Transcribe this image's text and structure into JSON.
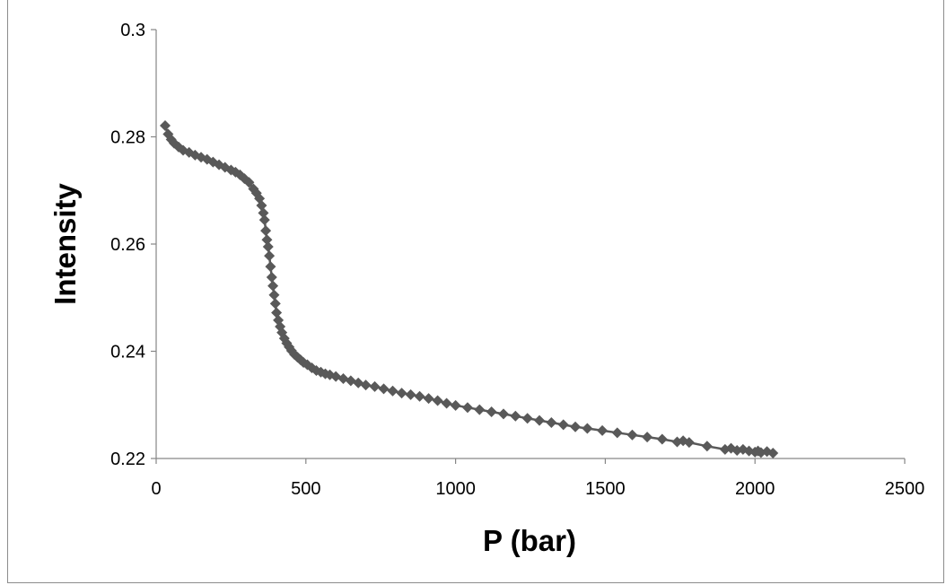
{
  "chart_data": {
    "type": "scatter",
    "title": "",
    "xlabel": "P (bar)",
    "ylabel": "Intensity",
    "xlim": [
      0,
      2500
    ],
    "ylim": [
      0.22,
      0.3
    ],
    "x_ticks": [
      0,
      500,
      1000,
      1500,
      2000,
      2500
    ],
    "y_ticks": [
      0.22,
      0.24,
      0.26,
      0.28,
      0.3
    ],
    "x_tick_labels": [
      "0",
      "500",
      "1000",
      "1500",
      "2000",
      "2500"
    ],
    "y_tick_labels": [
      "0.22",
      "0.24",
      "0.26",
      "0.28",
      "0.3"
    ],
    "grid": false,
    "legend": "none",
    "marker": "diamond",
    "marker_color": "#595959",
    "line_color": "#595959",
    "series": [
      {
        "x": [
          30,
          40,
          50,
          60,
          75,
          90,
          110,
          130,
          150,
          170,
          190,
          210,
          230,
          250,
          265,
          280,
          295,
          310,
          325,
          335,
          345,
          352,
          358,
          362,
          366,
          370,
          374,
          378,
          382,
          386,
          390,
          394,
          398,
          402,
          408,
          414,
          420,
          428,
          436,
          444,
          452,
          462,
          472,
          482,
          492,
          505,
          520,
          535,
          550,
          565,
          580,
          600,
          625,
          650,
          675,
          700,
          730,
          760,
          790,
          820,
          850,
          880,
          910,
          940,
          970,
          1000,
          1040,
          1080,
          1120,
          1160,
          1200,
          1240,
          1280,
          1320,
          1360,
          1400,
          1440,
          1490,
          1540,
          1590,
          1640,
          1690,
          1740,
          1760,
          1780,
          1840,
          1900,
          1920,
          1940,
          1960,
          1980,
          2000,
          2010,
          2020,
          2040,
          2060
        ],
        "y": [
          0.2821,
          0.2805,
          0.2795,
          0.2788,
          0.2781,
          0.2775,
          0.2771,
          0.2766,
          0.2762,
          0.2758,
          0.2753,
          0.2748,
          0.2743,
          0.2738,
          0.2734,
          0.2729,
          0.2722,
          0.2715,
          0.2703,
          0.2695,
          0.2685,
          0.2672,
          0.2658,
          0.2645,
          0.2625,
          0.2608,
          0.2595,
          0.2578,
          0.2558,
          0.2538,
          0.2522,
          0.2505,
          0.2489,
          0.2472,
          0.2458,
          0.2446,
          0.2435,
          0.2424,
          0.2415,
          0.2408,
          0.2401,
          0.2394,
          0.2389,
          0.2384,
          0.2379,
          0.2375,
          0.2369,
          0.2364,
          0.2361,
          0.2358,
          0.2356,
          0.2353,
          0.2349,
          0.2345,
          0.2341,
          0.2337,
          0.2334,
          0.233,
          0.2326,
          0.2322,
          0.2319,
          0.2316,
          0.2312,
          0.2308,
          0.2303,
          0.2299,
          0.2295,
          0.2291,
          0.2287,
          0.2283,
          0.2279,
          0.2275,
          0.2271,
          0.2267,
          0.2263,
          0.2259,
          0.2256,
          0.2252,
          0.2248,
          0.2244,
          0.224,
          0.2236,
          0.2231,
          0.2233,
          0.223,
          0.2223,
          0.2217,
          0.2219,
          0.2215,
          0.2217,
          0.2214,
          0.2212,
          0.2214,
          0.2211,
          0.2213,
          0.221
        ]
      }
    ]
  }
}
